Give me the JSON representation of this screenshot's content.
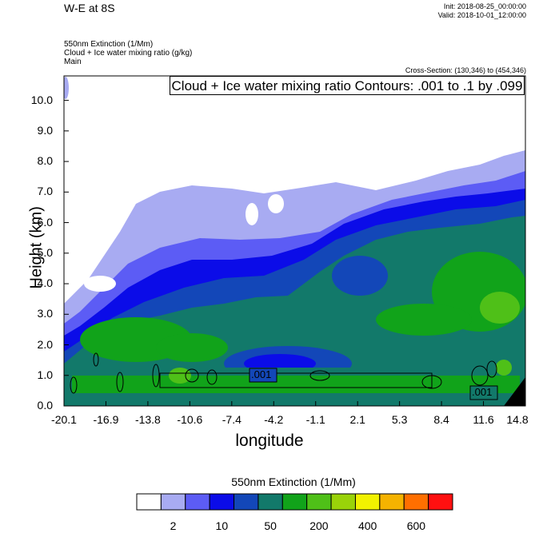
{
  "header": {
    "title": "W-E at 8S",
    "init": "Init: 2018-08-25_00:00:00",
    "valid": "Valid: 2018-10-01_12:00:00",
    "field1": "550nm Extinction   (1/Mm)",
    "field2": "Cloud + Ice water mixing ratio   (g/kg)",
    "field3": "Main",
    "cross_section": "Cross-Section: (130,346) to (454,346)"
  },
  "chart_data": {
    "type": "heatmap",
    "contour_label": "Cloud + Ice water mixing ratio Contours: .001 to .1 by .099",
    "contour_tags": [
      ".001",
      ".001"
    ],
    "xlabel": "longitude",
    "ylabel": "Height (km)",
    "xlim": [
      -20.1,
      14.8
    ],
    "ylim": [
      0.0,
      10.8
    ],
    "x_ticks": [
      "-20.1",
      "-16.9",
      "-13.8",
      "-10.6",
      "-7.4",
      "-4.2",
      "-1.1",
      "2.1",
      "5.3",
      "8.4",
      "11.6",
      "14.8"
    ],
    "y_ticks": [
      "0.0",
      "1.0",
      "2.0",
      "3.0",
      "4.0",
      "5.0",
      "6.0",
      "7.0",
      "8.0",
      "9.0",
      "10.0"
    ],
    "colorbar": {
      "title": "550nm Extinction  (1/Mm)",
      "colors": [
        "#ffffff",
        "#a8abf2",
        "#5c5cf5",
        "#0b0ce8",
        "#1347b8",
        "#12796a",
        "#11a31a",
        "#4fc018",
        "#9ad309",
        "#f2f200",
        "#f5b300",
        "#ff6f00",
        "#ff1010"
      ],
      "tick_labels": [
        "2",
        "10",
        "50",
        "200",
        "400",
        "600"
      ],
      "tick_boundaries": [
        1,
        3,
        5,
        7,
        9,
        11
      ]
    }
  }
}
